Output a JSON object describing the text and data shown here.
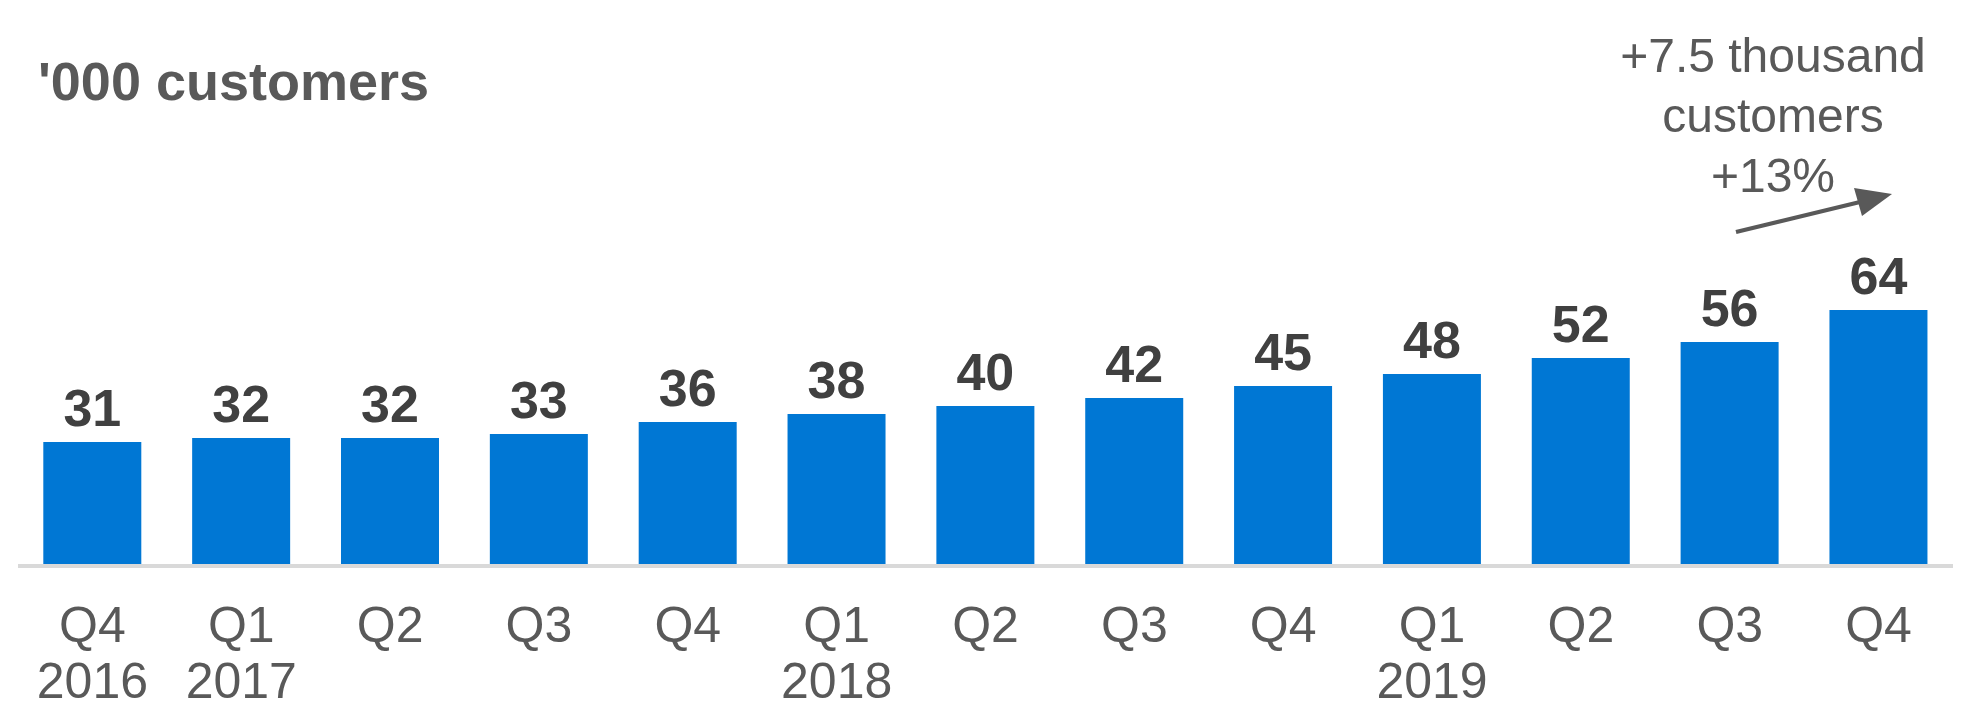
{
  "chart_data": {
    "type": "bar",
    "title": "'000 customers",
    "categories": [
      "Q4\n2016",
      "Q1\n2017",
      "Q2",
      "Q3",
      "Q4",
      "Q1\n2018",
      "Q2",
      "Q3",
      "Q4",
      "Q1\n2019",
      "Q2",
      "Q3",
      "Q4"
    ],
    "values": [
      31,
      32,
      32,
      33,
      36,
      38,
      40,
      42,
      45,
      48,
      52,
      56,
      64
    ],
    "color": "#0077d4",
    "data_labels": true,
    "annotations": [
      "+7.5 thousand\ncustomers\n+13%"
    ]
  }
}
